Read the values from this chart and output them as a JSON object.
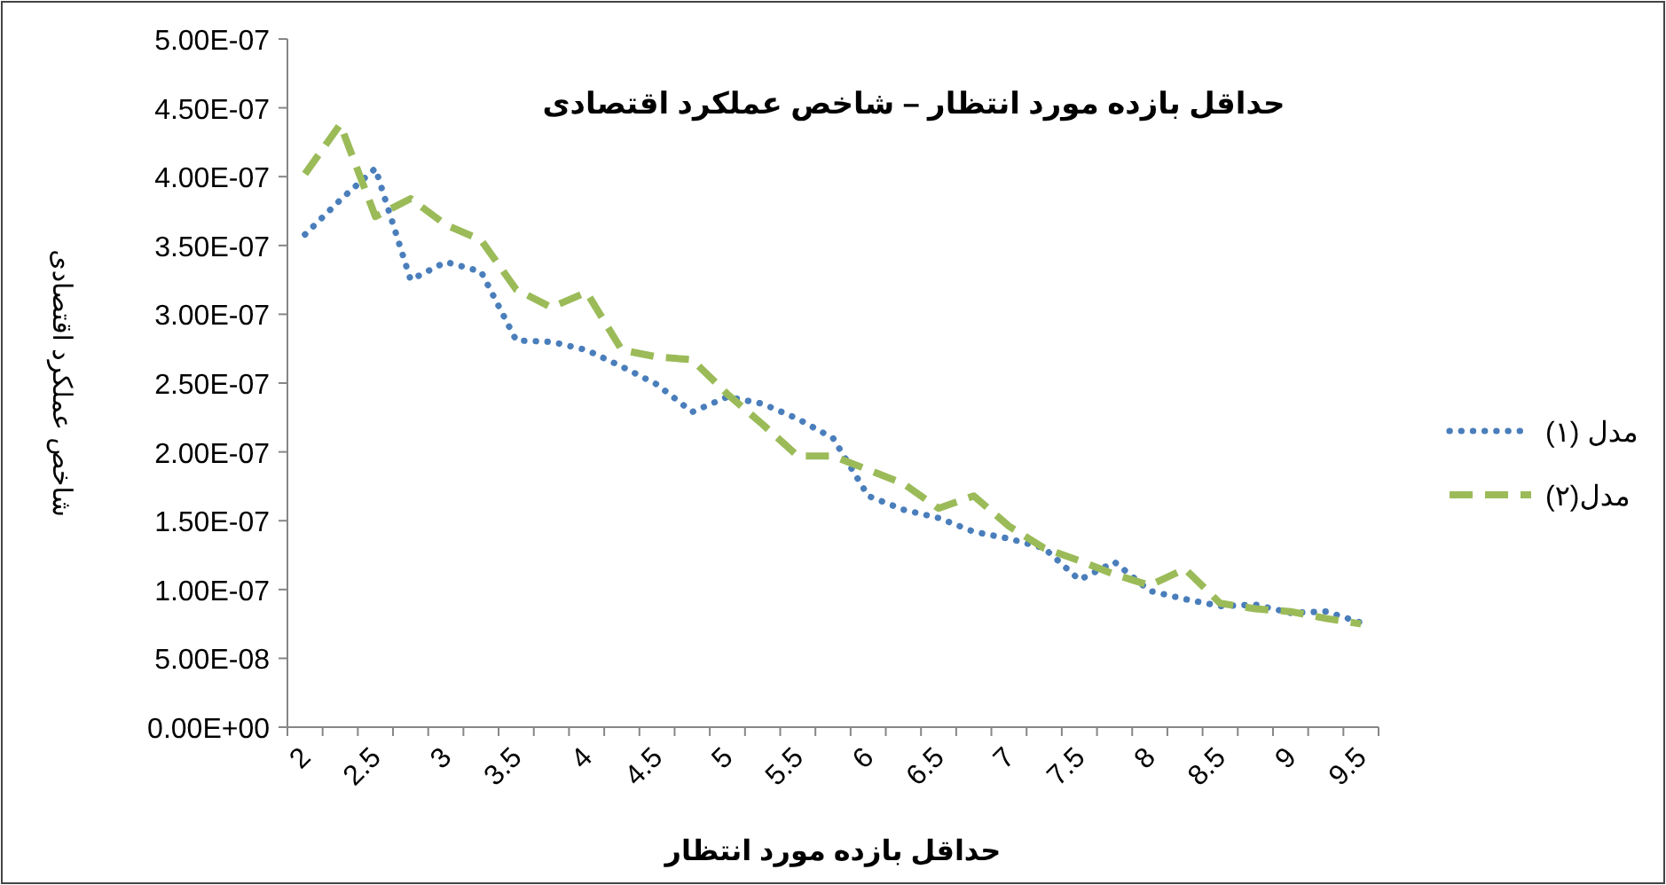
{
  "chart_data": {
    "type": "line",
    "title": "حداقل بازده مورد انتظار – شاخص عملکرد اقتصادی",
    "xlabel": "حداقل بازده مورد انتظار",
    "ylabel": "شاخص عملکرد اقتصادی",
    "categories": [
      "2",
      null,
      "2.5",
      null,
      "3",
      null,
      "3.5",
      null,
      "4",
      null,
      "4.5",
      null,
      "5",
      null,
      "5.5",
      null,
      "6",
      null,
      "6.5",
      null,
      "7",
      null,
      "7.5",
      null,
      "8",
      null,
      "8.5",
      null,
      "9",
      null,
      "9.5"
    ],
    "series": [
      {
        "name": "مدل (۱)",
        "color": "#4a7ebb",
        "line_style": "dotted",
        "values": [
          3.58e-07,
          3.83e-07,
          4.06e-07,
          3.25e-07,
          3.38e-07,
          3.31e-07,
          2.81e-07,
          2.8e-07,
          2.74e-07,
          2.62e-07,
          2.49e-07,
          2.29e-07,
          2.4e-07,
          2.35e-07,
          2.24e-07,
          2.1e-07,
          1.68e-07,
          1.58e-07,
          1.52e-07,
          1.42e-07,
          1.37e-07,
          1.3e-07,
          1.07e-07,
          1.2e-07,
          9.9e-08,
          9.3e-08,
          8.8e-08,
          8.9e-08,
          8.3e-08,
          8.4e-08,
          7.6e-08
        ]
      },
      {
        "name": "مدل(۲)",
        "color": "#9bbb59",
        "line_style": "dashed",
        "values": [
          4.02e-07,
          4.38e-07,
          3.71e-07,
          3.84e-07,
          3.65e-07,
          3.54e-07,
          3.18e-07,
          3.05e-07,
          3.16e-07,
          2.74e-07,
          2.69e-07,
          2.67e-07,
          2.42e-07,
          2.2e-07,
          1.97e-07,
          1.97e-07,
          1.87e-07,
          1.77e-07,
          1.59e-07,
          1.68e-07,
          1.46e-07,
          1.3e-07,
          1.21e-07,
          1.11e-07,
          1.03e-07,
          1.15e-07,
          9e-08,
          8.6e-08,
          8.4e-08,
          7.9e-08,
          7.5e-08
        ]
      }
    ],
    "ylim": [
      0,
      5e-07
    ],
    "yticks": [
      {
        "value": 0,
        "label": "0.00E+00"
      },
      {
        "value": 5e-08,
        "label": "5.00E-08"
      },
      {
        "value": 1e-07,
        "label": "1.00E-07"
      },
      {
        "value": 1.5e-07,
        "label": "1.50E-07"
      },
      {
        "value": 2e-07,
        "label": "2.00E-07"
      },
      {
        "value": 2.5e-07,
        "label": "2.50E-07"
      },
      {
        "value": 3e-07,
        "label": "3.00E-07"
      },
      {
        "value": 3.5e-07,
        "label": "3.50E-07"
      },
      {
        "value": 4e-07,
        "label": "4.00E-07"
      },
      {
        "value": 4.5e-07,
        "label": "4.50E-07"
      },
      {
        "value": 5e-07,
        "label": "5.00E-07"
      }
    ],
    "grid": false,
    "legend": "right",
    "marker": "none"
  }
}
